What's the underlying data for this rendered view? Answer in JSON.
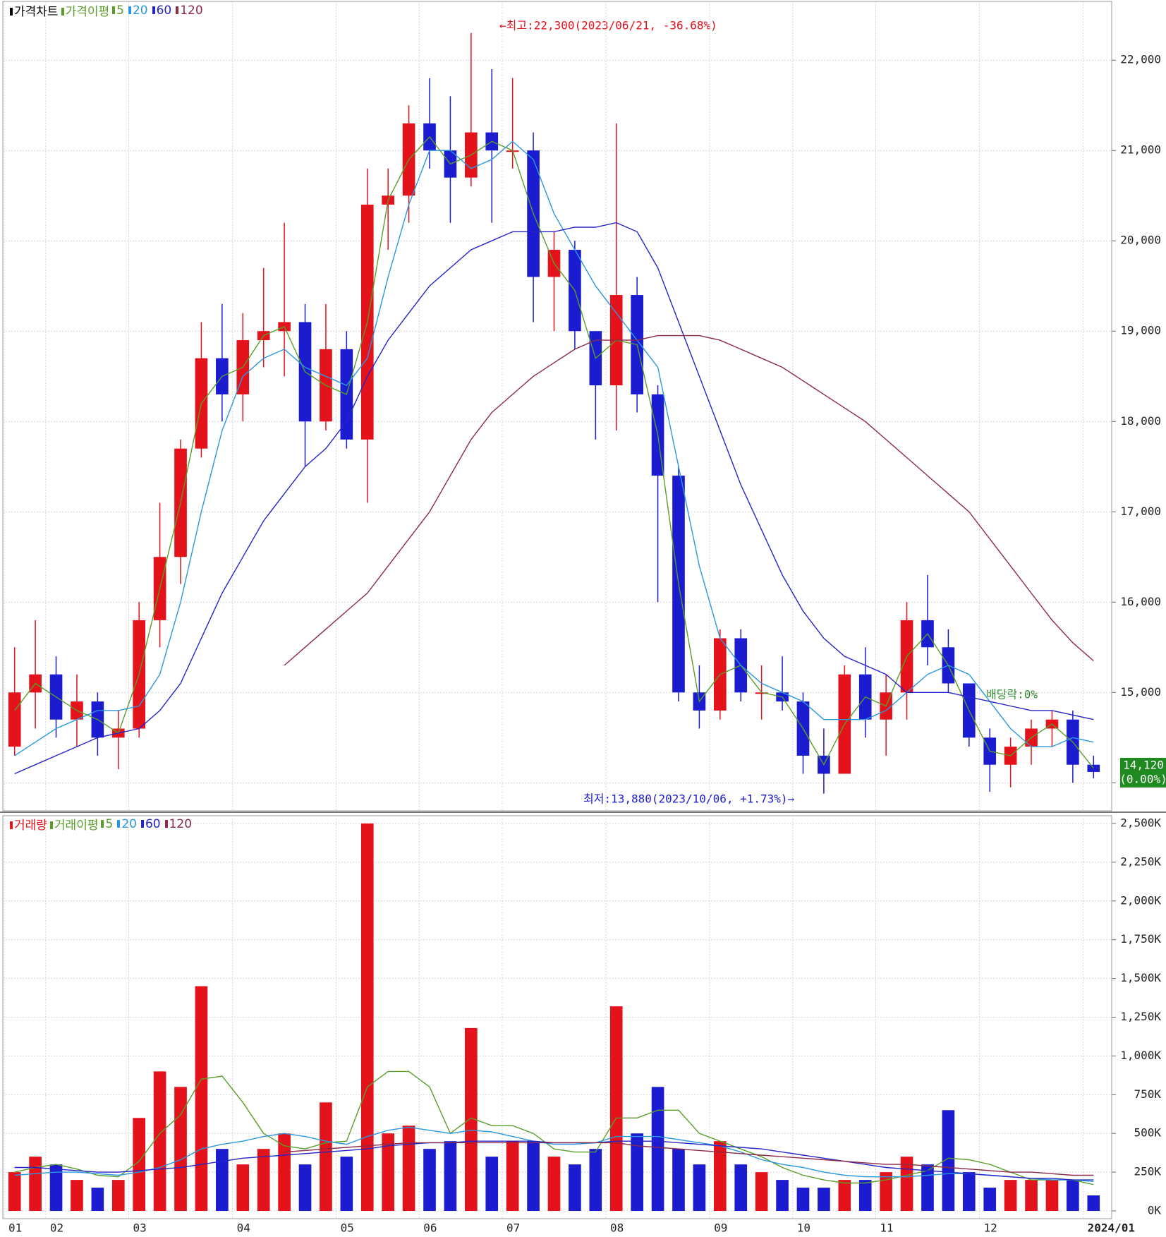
{
  "chart_data": [
    {
      "type": "candlestick",
      "legend": {
        "title": "가격차트",
        "ma_label": "가격이평"
      },
      "categories": [
        "01",
        null,
        "02",
        null,
        null,
        null,
        "03",
        null,
        null,
        null,
        null,
        "04",
        null,
        null,
        null,
        null,
        "05",
        null,
        null,
        null,
        "06",
        null,
        null,
        null,
        "07",
        null,
        null,
        null,
        null,
        "08",
        null,
        null,
        null,
        null,
        "09",
        null,
        null,
        null,
        "10",
        null,
        null,
        null,
        "11",
        null,
        null,
        null,
        null,
        "12",
        null,
        null,
        null,
        null,
        "2024/01"
      ],
      "open": [
        14400,
        15000,
        15200,
        14700,
        14900,
        14500,
        14600,
        15800,
        16500,
        17700,
        18700,
        18300,
        18900,
        19000,
        19100,
        18000,
        18800,
        17800,
        20400,
        20500,
        21300,
        21000,
        20700,
        21200,
        21000,
        21000,
        19600,
        19900,
        19000,
        18400,
        19400,
        18300,
        17400,
        15000,
        14800,
        15600,
        15000,
        15000,
        14900,
        14300,
        14100,
        15200,
        14700,
        15000,
        15800,
        15500,
        15100,
        14500,
        14200,
        14400,
        14600,
        14700,
        14200
      ],
      "high": [
        15500,
        15800,
        15400,
        15200,
        15000,
        14800,
        16000,
        17100,
        17800,
        19100,
        19300,
        19200,
        19700,
        20200,
        19300,
        19300,
        19000,
        20800,
        20800,
        21500,
        21800,
        21600,
        22300,
        21900,
        21800,
        21200,
        20100,
        20000,
        19000,
        21300,
        19600,
        18400,
        17500,
        15300,
        15700,
        15700,
        15300,
        15400,
        15000,
        14600,
        15300,
        15500,
        15200,
        16000,
        16300,
        15700,
        15100,
        14600,
        14500,
        14700,
        14800,
        14800,
        14300
      ],
      "low": [
        14300,
        14600,
        14500,
        14400,
        14300,
        14150,
        14500,
        15500,
        16200,
        17600,
        18000,
        18000,
        18600,
        18500,
        17500,
        17900,
        17700,
        17100,
        19900,
        20200,
        20800,
        20200,
        20600,
        20200,
        20800,
        19100,
        19000,
        18800,
        17800,
        17900,
        18100,
        16000,
        14900,
        14600,
        14700,
        14900,
        14700,
        14800,
        14100,
        13880,
        14100,
        14500,
        14300,
        14700,
        15300,
        15000,
        14400,
        13900,
        13950,
        14200,
        14400,
        14000,
        14050
      ],
      "close": [
        15000,
        15200,
        14700,
        14900,
        14500,
        14600,
        15800,
        16500,
        17700,
        18700,
        18300,
        18900,
        19000,
        19100,
        18000,
        18800,
        17800,
        20400,
        20500,
        21300,
        21000,
        20700,
        21200,
        21000,
        21000,
        19600,
        19900,
        19000,
        18400,
        19400,
        18300,
        17400,
        15000,
        14800,
        15600,
        15000,
        15000,
        14900,
        14300,
        14100,
        15200,
        14700,
        15000,
        15800,
        15500,
        15100,
        14500,
        14200,
        14400,
        14600,
        14700,
        14200,
        14120
      ],
      "up_color": "#e3121b",
      "down_color": "#1b1bd0",
      "series": [
        {
          "name": "5",
          "color": "#5a9e2a",
          "values": [
            14800,
            15100,
            14950,
            14800,
            14700,
            14550,
            15200,
            16150,
            17100,
            18200,
            18500,
            18600,
            18950,
            19050,
            18550,
            18400,
            18300,
            19100,
            20450,
            20900,
            21150,
            20850,
            20950,
            21100,
            21000,
            20300,
            19750,
            19450,
            18700,
            18900,
            18850,
            17850,
            16200,
            14900,
            15200,
            15300,
            15000,
            14950,
            14600,
            14200,
            14650,
            14950,
            14850,
            15400,
            15650,
            15300,
            14800,
            14350,
            14300,
            14500,
            14650,
            14450,
            14160
          ]
        },
        {
          "name": "20",
          "color": "#2a98e0",
          "values": [
            14300,
            14450,
            14600,
            14700,
            14800,
            14800,
            14850,
            15200,
            16000,
            17000,
            17900,
            18500,
            18700,
            18800,
            18600,
            18500,
            18400,
            18700,
            19600,
            20400,
            21000,
            21000,
            20800,
            20900,
            21100,
            20900,
            20300,
            19900,
            19500,
            19200,
            18900,
            18600,
            17500,
            16400,
            15600,
            15300,
            15100,
            15000,
            14900,
            14700,
            14700,
            14700,
            14800,
            15000,
            15200,
            15300,
            15200,
            14900,
            14600,
            14400,
            14400,
            14500,
            14450
          ]
        },
        {
          "name": "60",
          "color": "#2424c8",
          "values": [
            14100,
            14200,
            14300,
            14400,
            14500,
            14550,
            14600,
            14800,
            15100,
            15600,
            16100,
            16500,
            16900,
            17200,
            17500,
            17700,
            18000,
            18500,
            18900,
            19200,
            19500,
            19700,
            19900,
            20000,
            20100,
            20100,
            20100,
            20150,
            20150,
            20200,
            20100,
            19700,
            19100,
            18500,
            17900,
            17300,
            16800,
            16300,
            15900,
            15600,
            15400,
            15300,
            15200,
            15000,
            15000,
            15000,
            14950,
            14900,
            14850,
            14800,
            14800,
            14750,
            14700
          ]
        },
        {
          "name": "120",
          "color": "#8c2a48",
          "values": [
            null,
            null,
            null,
            null,
            null,
            null,
            null,
            null,
            null,
            null,
            null,
            null,
            null,
            15300,
            15500,
            15700,
            15900,
            16100,
            16400,
            16700,
            17000,
            17400,
            17800,
            18100,
            18300,
            18500,
            18650,
            18800,
            18900,
            18900,
            18900,
            18950,
            18950,
            18950,
            18900,
            18800,
            18700,
            18600,
            18450,
            18300,
            18150,
            18000,
            17800,
            17600,
            17400,
            17200,
            17000,
            16700,
            16400,
            16100,
            15800,
            15550,
            15350
          ]
        }
      ],
      "ylim": [
        13690,
        22650
      ],
      "yticks": [
        {
          "value": 14000,
          "label": "14,000"
        },
        {
          "value": 15000,
          "label": "15,000"
        },
        {
          "value": 16000,
          "label": "16,000"
        },
        {
          "value": 17000,
          "label": "17,000"
        },
        {
          "value": 18000,
          "label": "18,000"
        },
        {
          "value": 19000,
          "label": "19,000"
        },
        {
          "value": 20000,
          "label": "20,000"
        },
        {
          "value": 21000,
          "label": "21,000"
        },
        {
          "value": 22000,
          "label": "22,000"
        }
      ],
      "annotations": {
        "high": "←최고:22,300(2023/06/21, -36.68%)",
        "low": "최저:13,880(2023/10/06, +1.73%)→",
        "dividend": "배당락:0%"
      },
      "last_price": {
        "value": 14120,
        "label": "14,120"
      },
      "last_change": {
        "value": 0,
        "label": "(0.00%)"
      },
      "grid": true
    },
    {
      "type": "bar",
      "legend": {
        "title": "거래량",
        "ma_label": "거래이평"
      },
      "values": [
        250,
        350,
        300,
        200,
        150,
        200,
        600,
        900,
        800,
        1450,
        400,
        300,
        400,
        500,
        300,
        700,
        350,
        2500,
        500,
        550,
        400,
        450,
        1180,
        350,
        450,
        450,
        350,
        300,
        400,
        1320,
        500,
        800,
        400,
        300,
        450,
        300,
        250,
        200,
        150,
        150,
        200,
        200,
        250,
        350,
        300,
        650,
        250,
        150,
        200,
        200,
        200,
        200,
        100
      ],
      "series": [
        {
          "name": "5",
          "color": "#5a9e2a",
          "values": [
            250,
            280,
            300,
            270,
            230,
            220,
            320,
            500,
            620,
            850,
            870,
            700,
            500,
            420,
            400,
            440,
            450,
            800,
            900,
            900,
            800,
            500,
            600,
            550,
            550,
            500,
            400,
            380,
            380,
            600,
            600,
            650,
            650,
            500,
            450,
            400,
            350,
            280,
            230,
            200,
            180,
            180,
            200,
            230,
            260,
            340,
            330,
            300,
            250,
            200,
            200,
            200,
            170
          ]
        },
        {
          "name": "20",
          "color": "#2a98e0",
          "values": [
            230,
            240,
            250,
            250,
            240,
            230,
            250,
            280,
            330,
            400,
            430,
            450,
            480,
            500,
            480,
            450,
            430,
            480,
            520,
            540,
            520,
            500,
            520,
            510,
            480,
            450,
            430,
            430,
            440,
            480,
            480,
            480,
            460,
            440,
            420,
            380,
            330,
            300,
            280,
            250,
            230,
            220,
            220,
            220,
            230,
            240,
            240,
            230,
            220,
            210,
            200,
            200,
            190
          ]
        },
        {
          "name": "60",
          "color": "#2424c8",
          "values": [
            280,
            280,
            270,
            260,
            250,
            250,
            260,
            270,
            280,
            300,
            320,
            340,
            350,
            360,
            370,
            380,
            390,
            400,
            420,
            430,
            440,
            440,
            450,
            450,
            450,
            450,
            440,
            440,
            440,
            450,
            450,
            450,
            440,
            430,
            420,
            410,
            400,
            380,
            360,
            340,
            320,
            300,
            280,
            270,
            260,
            250,
            240,
            230,
            220,
            210,
            210,
            200,
            200
          ]
        },
        {
          "name": "120",
          "color": "#8c2a48",
          "values": [
            null,
            null,
            null,
            null,
            null,
            null,
            null,
            null,
            null,
            null,
            null,
            null,
            null,
            380,
            390,
            400,
            410,
            420,
            430,
            440,
            440,
            440,
            440,
            440,
            440,
            440,
            440,
            440,
            440,
            440,
            420,
            410,
            400,
            390,
            380,
            370,
            360,
            350,
            340,
            330,
            320,
            310,
            300,
            300,
            290,
            280,
            270,
            260,
            250,
            250,
            240,
            230,
            230
          ]
        }
      ],
      "ylim": [
        -50,
        2550
      ],
      "yticks": [
        {
          "value": 0,
          "label": "0K"
        },
        {
          "value": 250,
          "label": "250K"
        },
        {
          "value": 500,
          "label": "500K"
        },
        {
          "value": 750,
          "label": "750K"
        },
        {
          "value": 1000,
          "label": "1,000K"
        },
        {
          "value": 1250,
          "label": "1,250K"
        },
        {
          "value": 1500,
          "label": "1,500K"
        },
        {
          "value": 1750,
          "label": "1,750K"
        },
        {
          "value": 2000,
          "label": "2,000K"
        },
        {
          "value": 2250,
          "label": "2,250K"
        },
        {
          "value": 2500,
          "label": "2,500K"
        }
      ],
      "grid": true
    }
  ]
}
